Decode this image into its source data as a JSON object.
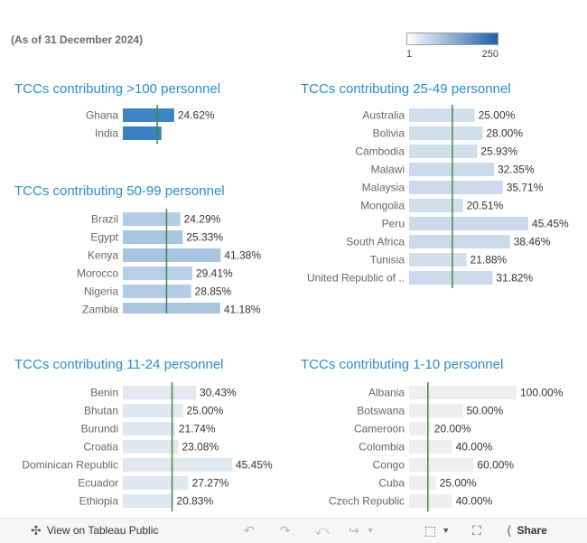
{
  "header": {
    "subtitle": "(As of 31 December 2024)"
  },
  "legend": {
    "min_label": "1",
    "max_label": "250",
    "color_low": "#ffffff",
    "color_high": "#1f5fa8"
  },
  "reference_line_color": "#3d8a3d",
  "chart_data": [
    {
      "type": "bar",
      "orientation": "horizontal",
      "title": "TCCs contributing >100 personnel",
      "categories": [
        "Ghana",
        "India"
      ],
      "values": [
        24.62,
        18.5
      ],
      "labels": [
        "24.62%",
        ""
      ],
      "fill_colors": [
        "#3f84c3",
        "#3a7fc0"
      ],
      "xlim": [
        0,
        45.45
      ],
      "reference_line": 16.5
    },
    {
      "type": "bar",
      "orientation": "horizontal",
      "title": "TCCs contributing 50-99 personnel",
      "categories": [
        "Brazil",
        "Egypt",
        "Kenya",
        "Morocco",
        "Nigeria",
        "Zambia"
      ],
      "values": [
        24.29,
        25.33,
        41.38,
        29.41,
        28.85,
        41.18
      ],
      "labels": [
        "24.29%",
        "25.33%",
        "41.38%",
        "29.41%",
        "28.85%",
        "41.18%"
      ],
      "fill_colors": [
        "#b3cbe4",
        "#a8c4e1",
        "#a8c4e1",
        "#b8cfe6",
        "#b3cbe4",
        "#a8c4e1"
      ],
      "xlim": [
        0,
        45.45
      ],
      "reference_line": 18.5
    },
    {
      "type": "bar",
      "orientation": "horizontal",
      "title": "TCCs contributing 25-49 personnel",
      "categories": [
        "Australia",
        "Bolivia",
        "Cambodia",
        "Malawi",
        "Malaysia",
        "Mongolia",
        "Peru",
        "South Africa",
        "Tunisia",
        "United Republic of .."
      ],
      "values": [
        25.0,
        28.0,
        25.93,
        32.35,
        35.71,
        20.51,
        45.45,
        38.46,
        21.88,
        31.82
      ],
      "labels": [
        "25.00%",
        "28.00%",
        "25.93%",
        "32.35%",
        "35.71%",
        "20.51%",
        "45.45%",
        "38.46%",
        "21.88%",
        "31.82%"
      ],
      "fill_colors": [
        "#d1deec",
        "#d1deec",
        "#d1deec",
        "#cddaea",
        "#cddaea",
        "#d1deec",
        "#cddaea",
        "#cddaea",
        "#d1deec",
        "#cddaea"
      ],
      "xlim": [
        0,
        45.45
      ],
      "reference_line": 16.5
    },
    {
      "type": "bar",
      "orientation": "horizontal",
      "title": "TCCs contributing 11-24 personnel",
      "categories": [
        "Benin",
        "Bhutan",
        "Burundi",
        "Croatia",
        "Dominican Republic",
        "Ecuador",
        "Ethiopia"
      ],
      "values": [
        30.43,
        25.0,
        21.74,
        23.08,
        45.45,
        27.27,
        20.83
      ],
      "labels": [
        "30.43%",
        "25.00%",
        "21.74%",
        "23.08%",
        "45.45%",
        "27.27%",
        "20.83%"
      ],
      "fill_colors": [
        "#e2e8ef",
        "#e2e8ef",
        "#e2e8ef",
        "#e2e8ef",
        "#e2e8ef",
        "#e2e8ef",
        "#e2e8ef"
      ],
      "xlim": [
        0,
        45.45
      ],
      "reference_line": 20.5
    },
    {
      "type": "bar",
      "orientation": "horizontal",
      "title": "TCCs contributing 1-10 personnel",
      "categories": [
        "Albania",
        "Botswana",
        "Cameroon",
        "Colombia",
        "Congo",
        "Cuba",
        "Czech Republic"
      ],
      "values": [
        100.0,
        50.0,
        20.0,
        40.0,
        60.0,
        25.0,
        40.0
      ],
      "labels": [
        "100.00%",
        "50.00%",
        "20.00%",
        "40.00%",
        "60.00%",
        "25.00%",
        "40.00%"
      ],
      "fill_colors": [
        "#eeeeee",
        "#eeeeee",
        "#eeeeee",
        "#eeeeee",
        "#eeeeee",
        "#eeeeee",
        "#eeeeee"
      ],
      "xlim": [
        0,
        100
      ],
      "reference_line": 17.5
    }
  ],
  "toolbar": {
    "view_label": "View on Tableau Public",
    "share_label": "Share",
    "view_icon": "tableau-logo-icon",
    "undo_icon": "undo-icon",
    "redo_icon": "redo-icon",
    "revert_icon": "revert-icon",
    "forward_icon": "forward-icon",
    "download_icon": "download-icon",
    "fullscreen_icon": "fullscreen-icon",
    "share_icon": "share-icon"
  }
}
